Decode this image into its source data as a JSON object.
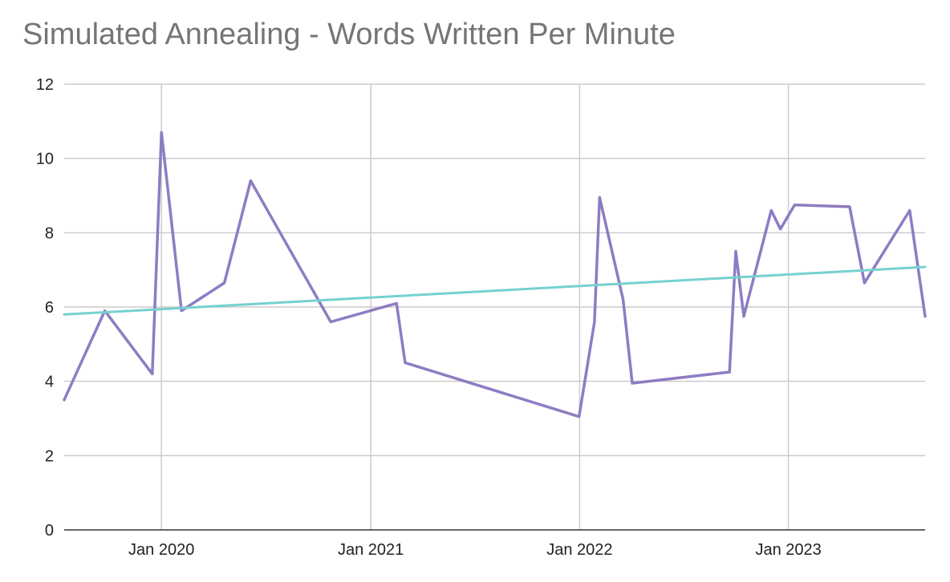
{
  "chart_data": {
    "type": "line",
    "title": "Simulated Annealing - Words Written Per Minute",
    "xlabel": "",
    "ylabel": "",
    "ylim": [
      0,
      12
    ],
    "xlim": [
      "2019-07-15",
      "2023-08-28"
    ],
    "y_ticks": [
      "0",
      "2",
      "4",
      "6",
      "8",
      "10",
      "12"
    ],
    "x_ticks": [
      {
        "date": "2020-01-01",
        "label": "Jan 2020"
      },
      {
        "date": "2021-01-01",
        "label": "Jan 2021"
      },
      {
        "date": "2022-01-01",
        "label": "Jan 2022"
      },
      {
        "date": "2023-01-01",
        "label": "Jan 2023"
      }
    ],
    "grid": true,
    "legend": "none",
    "series": [
      {
        "kind": "data",
        "color": "#8e7cc3",
        "points": [
          {
            "x": "2019-07-15",
            "y": 3.5
          },
          {
            "x": "2019-09-24",
            "y": 5.9
          },
          {
            "x": "2019-12-16",
            "y": 4.2
          },
          {
            "x": "2020-01-01",
            "y": 10.7
          },
          {
            "x": "2020-02-05",
            "y": 5.9
          },
          {
            "x": "2020-04-20",
            "y": 6.65
          },
          {
            "x": "2020-06-05",
            "y": 9.4
          },
          {
            "x": "2020-10-23",
            "y": 5.6
          },
          {
            "x": "2021-02-15",
            "y": 6.1
          },
          {
            "x": "2021-03-02",
            "y": 4.5
          },
          {
            "x": "2021-12-31",
            "y": 3.05
          },
          {
            "x": "2022-01-27",
            "y": 5.6
          },
          {
            "x": "2022-02-05",
            "y": 8.95
          },
          {
            "x": "2022-03-18",
            "y": 6.2
          },
          {
            "x": "2022-04-03",
            "y": 3.95
          },
          {
            "x": "2022-09-20",
            "y": 4.25
          },
          {
            "x": "2022-10-01",
            "y": 7.5
          },
          {
            "x": "2022-10-15",
            "y": 5.75
          },
          {
            "x": "2022-12-02",
            "y": 8.6
          },
          {
            "x": "2022-12-18",
            "y": 8.1
          },
          {
            "x": "2023-01-12",
            "y": 8.75
          },
          {
            "x": "2023-04-18",
            "y": 8.7
          },
          {
            "x": "2023-05-14",
            "y": 6.65
          },
          {
            "x": "2023-08-01",
            "y": 8.6
          },
          {
            "x": "2023-08-28",
            "y": 5.75
          }
        ]
      },
      {
        "kind": "trendline",
        "color": "#76d1d0",
        "points": [
          {
            "x": "2019-07-15",
            "y": 5.8
          },
          {
            "x": "2023-08-28",
            "y": 7.08
          }
        ]
      }
    ]
  }
}
